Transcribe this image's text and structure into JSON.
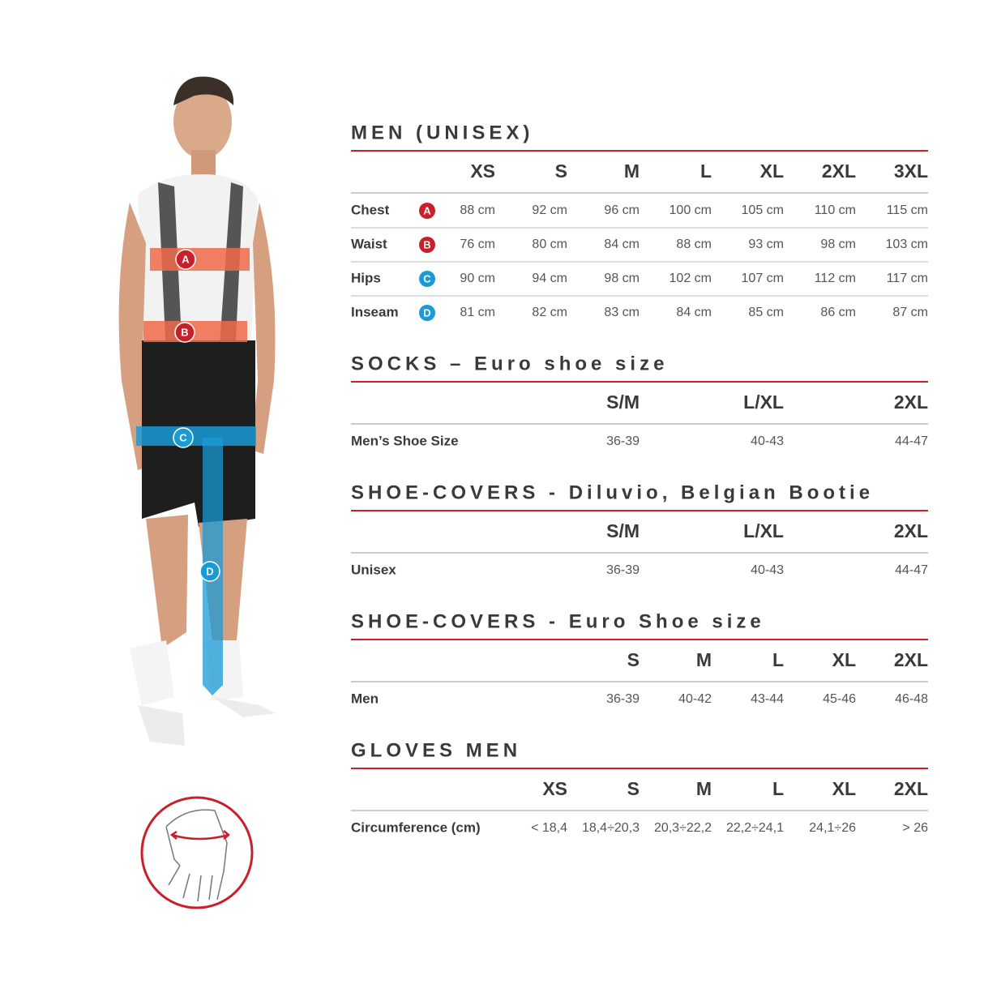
{
  "sections": [
    {
      "title": "MEN (UNISEX)",
      "columns": [
        "XS",
        "S",
        "M",
        "L",
        "XL",
        "2XL",
        "3XL"
      ],
      "rows": [
        {
          "label": "Chest",
          "badge": "A",
          "badge_color": "#c8202a",
          "cells": [
            "88 cm",
            "92 cm",
            "96 cm",
            "100 cm",
            "105 cm",
            "110 cm",
            "115 cm"
          ]
        },
        {
          "label": "Waist",
          "badge": "B",
          "badge_color": "#c8202a",
          "cells": [
            "76 cm",
            "80 cm",
            "84 cm",
            "88 cm",
            "93 cm",
            "98 cm",
            "103 cm"
          ]
        },
        {
          "label": "Hips",
          "badge": "C",
          "badge_color": "#1a9ad6",
          "cells": [
            "90 cm",
            "94 cm",
            "98 cm",
            "102 cm",
            "107 cm",
            "112 cm",
            "117 cm"
          ]
        },
        {
          "label": "Inseam",
          "badge": "D",
          "badge_color": "#1a9ad6",
          "cells": [
            "81 cm",
            "82 cm",
            "83 cm",
            "84 cm",
            "85 cm",
            "86 cm",
            "87 cm"
          ]
        }
      ]
    },
    {
      "title": "SOCKS – Euro shoe size",
      "columns": [
        "S/M",
        "L/XL",
        "2XL"
      ],
      "rows": [
        {
          "label": "Men’s Shoe Size",
          "cells": [
            "36-39",
            "40-43",
            "44-47"
          ]
        }
      ]
    },
    {
      "title": "SHOE-COVERS - Diluvio, Belgian Bootie",
      "columns": [
        "S/M",
        "L/XL",
        "2XL"
      ],
      "rows": [
        {
          "label": "Unisex",
          "cells": [
            "36-39",
            "40-43",
            "44-47"
          ]
        }
      ]
    },
    {
      "title": "SHOE-COVERS - Euro Shoe size",
      "columns": [
        "S",
        "M",
        "L",
        "XL",
        "2XL"
      ],
      "rows": [
        {
          "label": "Men",
          "cells": [
            "36-39",
            "40-42",
            "43-44",
            "45-46",
            "46-48"
          ]
        }
      ]
    },
    {
      "title": "GLOVES MEN",
      "columns": [
        "XS",
        "S",
        "M",
        "L",
        "XL",
        "2XL"
      ],
      "rows": [
        {
          "label": "Circumference (cm)",
          "cells": [
            "< 18,4",
            "18,4÷20,3",
            "20,3÷22,2",
            "22,2÷24,1",
            "24,1÷26",
            "> 26"
          ]
        }
      ]
    }
  ]
}
